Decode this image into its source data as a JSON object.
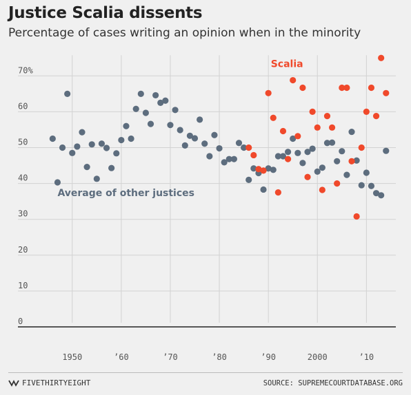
{
  "header": {
    "title": "Justice Scalia dissents",
    "subtitle": "Percentage of cases writing an opinion when in the minority"
  },
  "footer": {
    "brand": "FIVETHIRTYEIGHT",
    "source": "SOURCE: SUPREMECOURTDATABASE.ORG"
  },
  "colors": {
    "scalia": "#f0492b",
    "others": "#5d6d7e",
    "grid": "#d2d2d2",
    "baseline": "#222222",
    "background": "#f0f0f0"
  },
  "chart_data": {
    "type": "scatter",
    "title": "Justice Scalia dissents",
    "subtitle": "Percentage of cases writing an opinion when in the minority",
    "xlim": [
      1943,
      2016
    ],
    "ylim": [
      0,
      75
    ],
    "x_ticks": [
      {
        "value": 1950,
        "label": "1950"
      },
      {
        "value": 1960,
        "label": "’60"
      },
      {
        "value": 1970,
        "label": "’70"
      },
      {
        "value": 1980,
        "label": "’80"
      },
      {
        "value": 1990,
        "label": "’90"
      },
      {
        "value": 2000,
        "label": "2000"
      },
      {
        "value": 2010,
        "label": "’10"
      }
    ],
    "y_ticks": [
      {
        "value": 0,
        "label": "0"
      },
      {
        "value": 10,
        "label": "10"
      },
      {
        "value": 20,
        "label": "20"
      },
      {
        "value": 30,
        "label": "30"
      },
      {
        "value": 40,
        "label": "40"
      },
      {
        "value": 50,
        "label": "50"
      },
      {
        "value": 60,
        "label": "60"
      },
      {
        "value": 70,
        "label": "70%"
      }
    ],
    "grid": true,
    "series": [
      {
        "name": "Average of other justices",
        "color": "#5d6d7e",
        "label_anchor": [
          1947,
          36.5
        ],
        "points": [
          [
            1946,
            52.5
          ],
          [
            1947,
            40.3
          ],
          [
            1948,
            50.0
          ],
          [
            1949,
            65.0
          ],
          [
            1950,
            48.5
          ],
          [
            1951,
            50.3
          ],
          [
            1952,
            54.3
          ],
          [
            1953,
            44.6
          ],
          [
            1954,
            50.9
          ],
          [
            1955,
            41.3
          ],
          [
            1956,
            51.1
          ],
          [
            1957,
            49.9
          ],
          [
            1958,
            44.3
          ],
          [
            1959,
            48.4
          ],
          [
            1960,
            52.1
          ],
          [
            1961,
            56.0
          ],
          [
            1962,
            52.5
          ],
          [
            1963,
            60.8
          ],
          [
            1964,
            65.0
          ],
          [
            1965,
            59.7
          ],
          [
            1966,
            56.6
          ],
          [
            1967,
            64.6
          ],
          [
            1968,
            62.5
          ],
          [
            1969,
            63.1
          ],
          [
            1970,
            56.3
          ],
          [
            1971,
            60.5
          ],
          [
            1972,
            54.9
          ],
          [
            1973,
            50.6
          ],
          [
            1974,
            53.3
          ],
          [
            1975,
            52.6
          ],
          [
            1976,
            57.8
          ],
          [
            1977,
            51.1
          ],
          [
            1978,
            47.6
          ],
          [
            1979,
            53.5
          ],
          [
            1980,
            49.8
          ],
          [
            1981,
            45.9
          ],
          [
            1982,
            46.8
          ],
          [
            1983,
            46.8
          ],
          [
            1984,
            51.3
          ],
          [
            1985,
            50.0
          ],
          [
            1986,
            41.0
          ],
          [
            1987,
            44.2
          ],
          [
            1988,
            42.9
          ],
          [
            1989,
            38.3
          ],
          [
            1990,
            44.2
          ],
          [
            1991,
            43.8
          ],
          [
            1992,
            47.6
          ],
          [
            1993,
            47.6
          ],
          [
            1994,
            48.8
          ],
          [
            1995,
            52.5
          ],
          [
            1996,
            48.5
          ],
          [
            1997,
            45.7
          ],
          [
            1998,
            48.8
          ],
          [
            1999,
            49.7
          ],
          [
            2000,
            43.3
          ],
          [
            2001,
            44.4
          ],
          [
            2002,
            51.3
          ],
          [
            2003,
            51.4
          ],
          [
            2004,
            46.2
          ],
          [
            2005,
            49.0
          ],
          [
            2006,
            42.4
          ],
          [
            2007,
            54.4
          ],
          [
            2008,
            46.4
          ],
          [
            2009,
            39.5
          ],
          [
            2010,
            43.0
          ],
          [
            2011,
            39.3
          ],
          [
            2012,
            37.3
          ],
          [
            2013,
            36.7
          ],
          [
            2014,
            49.1
          ]
        ]
      },
      {
        "name": "Scalia",
        "color": "#f0492b",
        "label_anchor": [
          1990.5,
          72.5
        ],
        "points": [
          [
            1986,
            50.0
          ],
          [
            1987,
            47.9
          ],
          [
            1988,
            44.0
          ],
          [
            1989,
            43.6
          ],
          [
            1990,
            65.2
          ],
          [
            1991,
            58.3
          ],
          [
            1992,
            37.5
          ],
          [
            1993,
            54.6
          ],
          [
            1994,
            46.8
          ],
          [
            1995,
            68.8
          ],
          [
            1996,
            53.2
          ],
          [
            1997,
            66.7
          ],
          [
            1998,
            41.8
          ],
          [
            1999,
            60.0
          ],
          [
            2000,
            55.6
          ],
          [
            2001,
            38.2
          ],
          [
            2002,
            58.8
          ],
          [
            2003,
            55.6
          ],
          [
            2004,
            40.0
          ],
          [
            2005,
            66.7
          ],
          [
            2006,
            66.7
          ],
          [
            2007,
            46.2
          ],
          [
            2008,
            30.8
          ],
          [
            2009,
            50.0
          ],
          [
            2010,
            60.0
          ],
          [
            2011,
            66.7
          ],
          [
            2012,
            58.8
          ],
          [
            2013,
            75.0
          ],
          [
            2014,
            65.2
          ]
        ]
      }
    ]
  }
}
